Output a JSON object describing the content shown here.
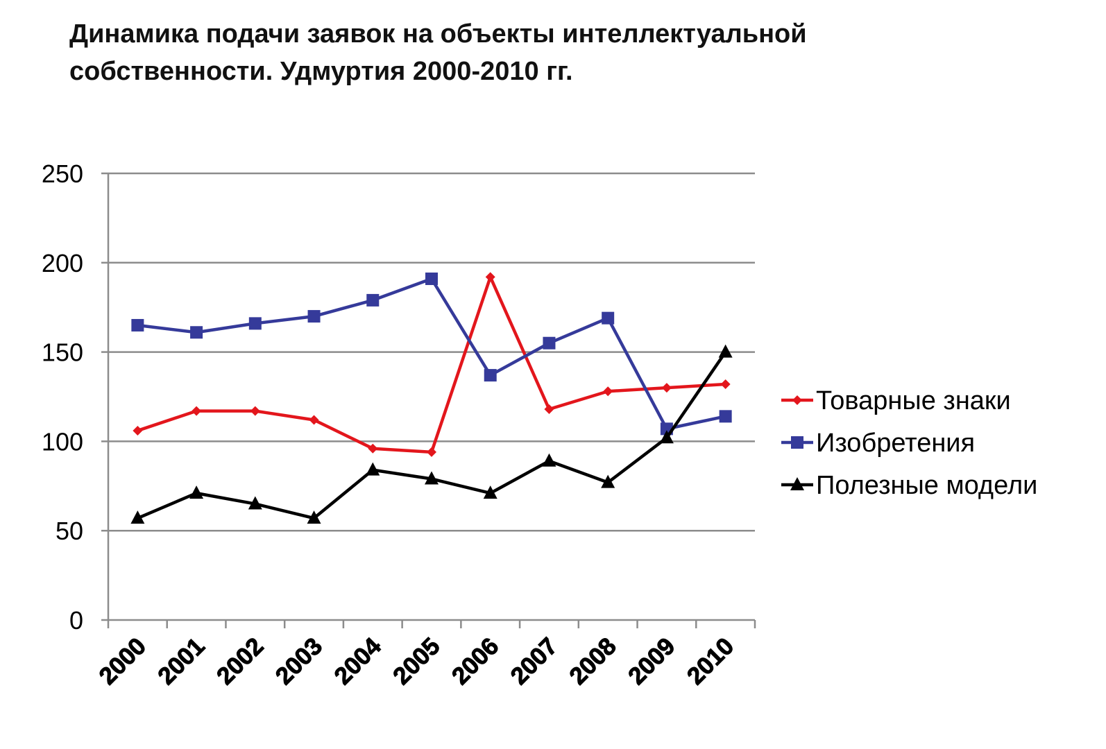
{
  "title": "Динамика подачи заявок на объекты интеллектуальной собственности. Удмуртия 2000-2010 гг.",
  "chart_data": {
    "type": "line",
    "title": "Динамика подачи заявок на объекты интеллектуальной собственности. Удмуртия 2000-2010 гг.",
    "xlabel": "",
    "ylabel": "",
    "categories": [
      "2000",
      "2001",
      "2002",
      "2003",
      "2004",
      "2005",
      "2006",
      "2007",
      "2008",
      "2009",
      "2010"
    ],
    "ylim": [
      0,
      250
    ],
    "yticks": [
      0,
      50,
      100,
      150,
      200,
      250
    ],
    "grid": "horizontal",
    "legend": "right",
    "series": [
      {
        "name": "Товарные знаки",
        "color": "#e3161c",
        "marker": "diamond",
        "values": [
          106,
          117,
          117,
          112,
          96,
          94,
          192,
          118,
          128,
          130,
          132
        ]
      },
      {
        "name": "Изобретения",
        "color": "#353a9a",
        "marker": "square",
        "values": [
          165,
          161,
          166,
          170,
          179,
          191,
          137,
          155,
          169,
          107,
          114
        ]
      },
      {
        "name": "Полезные модели",
        "color": "#000000",
        "marker": "triangle",
        "values": [
          57,
          71,
          65,
          57,
          84,
          79,
          71,
          89,
          77,
          102,
          150
        ]
      }
    ]
  }
}
